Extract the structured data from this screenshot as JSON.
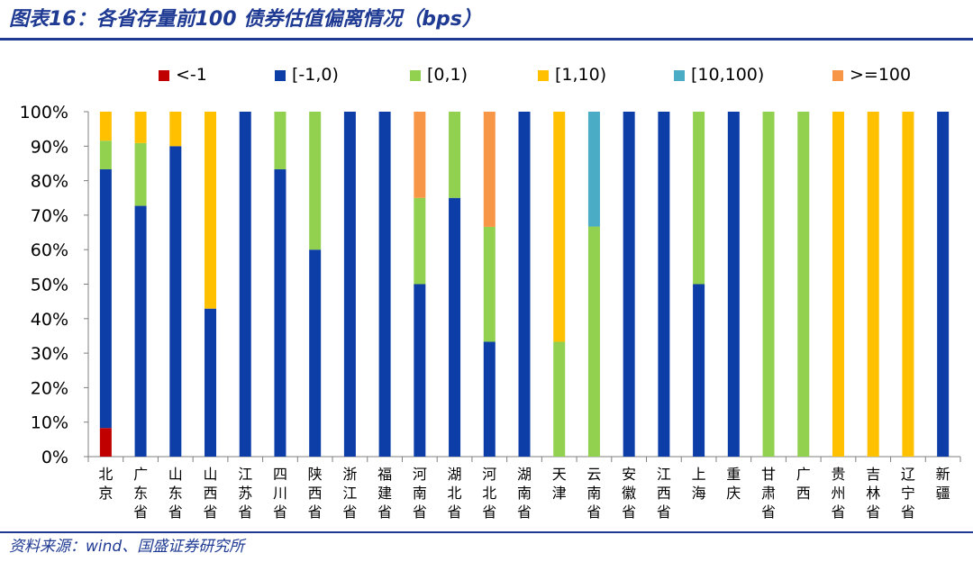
{
  "header": {
    "title": "图表16：各省存量前100 债券估值偏离情况（bps）"
  },
  "footer": {
    "source": "资料来源：wind、国盛证券研究所"
  },
  "colors": {
    "title": "#1f3a93",
    "axis": "#7f7f7f"
  },
  "chart_data": {
    "type": "bar",
    "stacked": true,
    "title": "",
    "xlabel": "",
    "ylabel": "",
    "ylim": [
      0,
      100
    ],
    "y_ticks": [
      "0%",
      "10%",
      "20%",
      "30%",
      "40%",
      "50%",
      "60%",
      "70%",
      "80%",
      "90%",
      "100%"
    ],
    "legend_position": "top",
    "grid": false,
    "categories": [
      "北京",
      "广东省",
      "山东省",
      "山西省",
      "江苏省",
      "四川省",
      "陕西省",
      "浙江省",
      "福建省",
      "河南省",
      "湖北省",
      "河北省",
      "湖南省",
      "天津",
      "云南省",
      "安徽省",
      "江西省",
      "上海",
      "重庆",
      "甘肃省",
      "广西",
      "贵州省",
      "吉林省",
      "辽宁省",
      "新疆"
    ],
    "series": [
      {
        "name": "<-1",
        "color": "#c00000",
        "values": [
          8.3,
          0,
          0,
          0,
          0,
          0,
          0,
          0,
          0,
          0,
          0,
          0,
          0,
          0,
          0,
          0,
          0,
          0,
          0,
          0,
          0,
          0,
          0,
          0,
          0
        ]
      },
      {
        "name": "[-1,0)",
        "color": "#0d3ea8",
        "values": [
          75,
          72.7,
          90,
          42.9,
          100,
          83.3,
          60,
          100,
          100,
          50,
          75,
          33.3,
          100,
          0,
          0,
          100,
          100,
          50,
          100,
          0,
          0,
          0,
          0,
          0,
          100
        ]
      },
      {
        "name": "[0,1)",
        "color": "#92d050",
        "values": [
          8.3,
          18.2,
          0,
          0,
          0,
          16.7,
          40,
          0,
          0,
          25,
          25,
          33.3,
          0,
          33.3,
          66.7,
          0,
          0,
          50,
          0,
          100,
          100,
          0,
          0,
          0,
          0
        ]
      },
      {
        "name": "[1,10)",
        "color": "#ffc000",
        "values": [
          8.4,
          9.1,
          10,
          57.1,
          0,
          0,
          0,
          0,
          0,
          0,
          0,
          0,
          0,
          66.7,
          0,
          0,
          0,
          0,
          0,
          0,
          0,
          100,
          100,
          100,
          0
        ]
      },
      {
        "name": "[10,100)",
        "color": "#4bacc6",
        "values": [
          0,
          0,
          0,
          0,
          0,
          0,
          0,
          0,
          0,
          0,
          0,
          0,
          0,
          0,
          33.3,
          0,
          0,
          0,
          0,
          0,
          0,
          0,
          0,
          0,
          0
        ]
      },
      {
        "name": ">=100",
        "color": "#f79646",
        "values": [
          0,
          0,
          0,
          0,
          0,
          0,
          0,
          0,
          0,
          25,
          0,
          33.4,
          0,
          0,
          0,
          0,
          0,
          0,
          0,
          0,
          0,
          0,
          0,
          0,
          0
        ]
      }
    ]
  }
}
